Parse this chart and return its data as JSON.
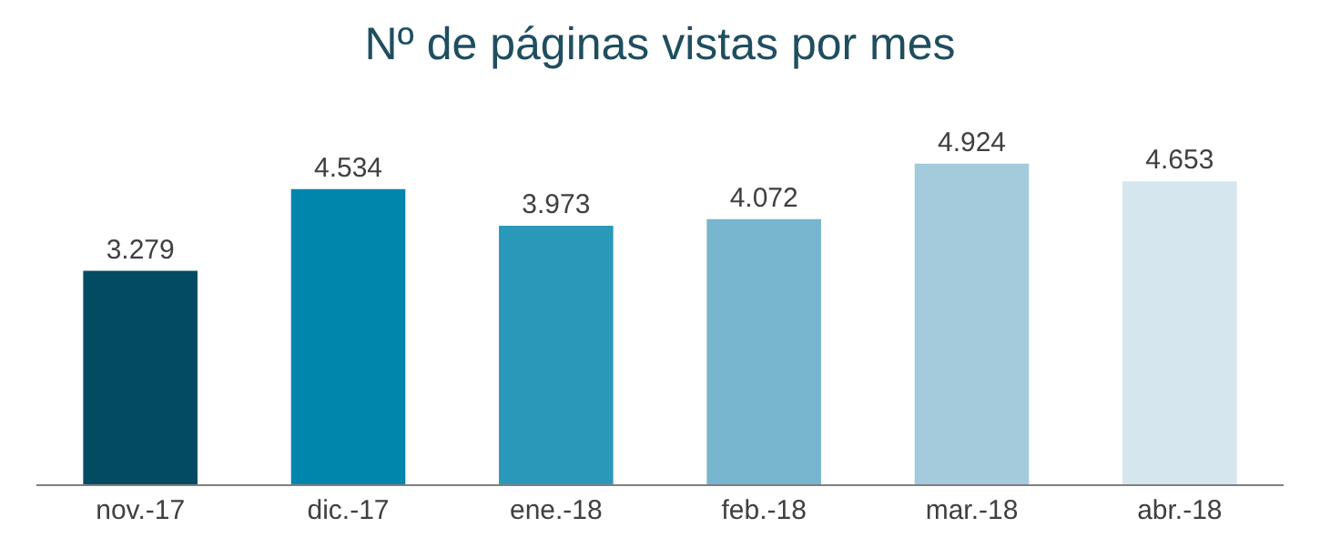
{
  "chart_data": {
    "type": "bar",
    "title": "Nº de páginas vistas por mes",
    "categories": [
      "nov.-17",
      "dic.-17",
      "ene.-18",
      "feb.-18",
      "mar.-18",
      "abr.-18"
    ],
    "values": [
      3279,
      4534,
      3973,
      4072,
      4924,
      4653
    ],
    "value_labels": [
      "3.279",
      "4.534",
      "3.973",
      "4.072",
      "4.924",
      "4.653"
    ],
    "colors": [
      "#034a63",
      "#0086ad",
      "#2a98b8",
      "#78b5cf",
      "#a3cbdc",
      "#d5e6ee"
    ]
  }
}
